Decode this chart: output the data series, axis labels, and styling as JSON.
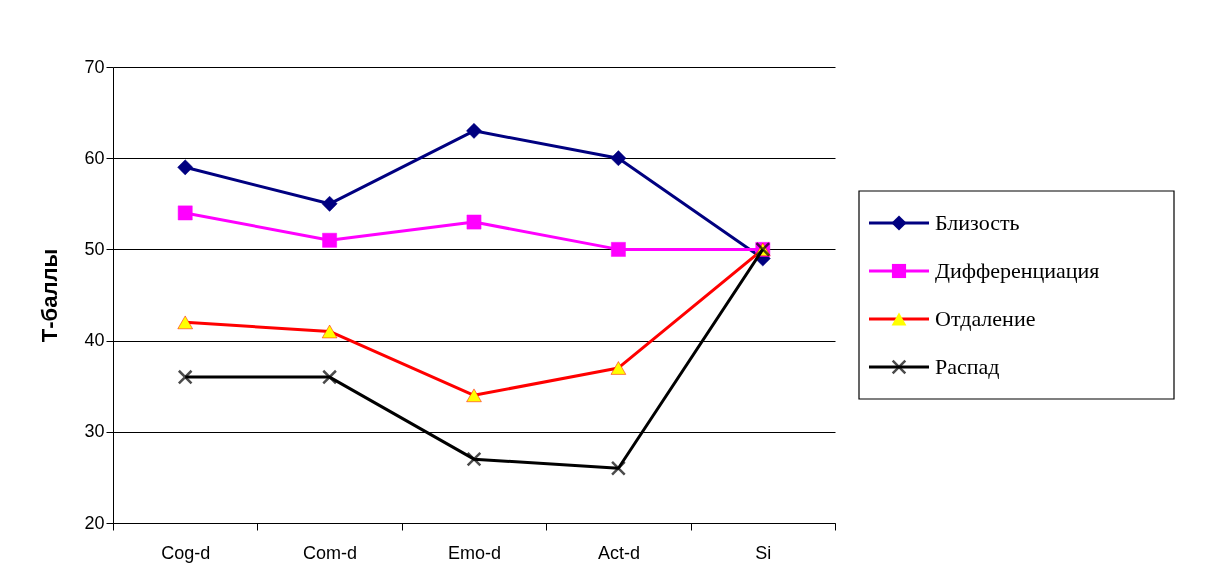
{
  "chart_data": {
    "type": "line",
    "ylabel": "Т-баллы",
    "categories": [
      "Cog-d",
      "Com-d",
      "Emo-d",
      "Act-d",
      "Si"
    ],
    "series": [
      {
        "name": "Близость",
        "color": "#000080",
        "marker": "diamond",
        "values": [
          59,
          55,
          63,
          60,
          49
        ]
      },
      {
        "name": "Дифференциация",
        "color": "#ff00ff",
        "marker": "square",
        "values": [
          54,
          51,
          53,
          50,
          50
        ]
      },
      {
        "name": "Отдаление",
        "color": "#ff0000",
        "marker": "triangle",
        "colors": [
          "#ffff00",
          "#ffff00",
          "#ffff00",
          "#ffff00",
          "#ffff00"
        ],
        "values": [
          42,
          41,
          34,
          37,
          50
        ]
      },
      {
        "name": "Распад",
        "color": "#000000",
        "marker": "cross",
        "values": [
          36,
          36,
          27,
          26,
          50
        ]
      }
    ],
    "ylim": [
      20,
      70
    ],
    "yticks": [
      20,
      30,
      40,
      50,
      60,
      70
    ],
    "grid": "y",
    "legend": "right"
  }
}
